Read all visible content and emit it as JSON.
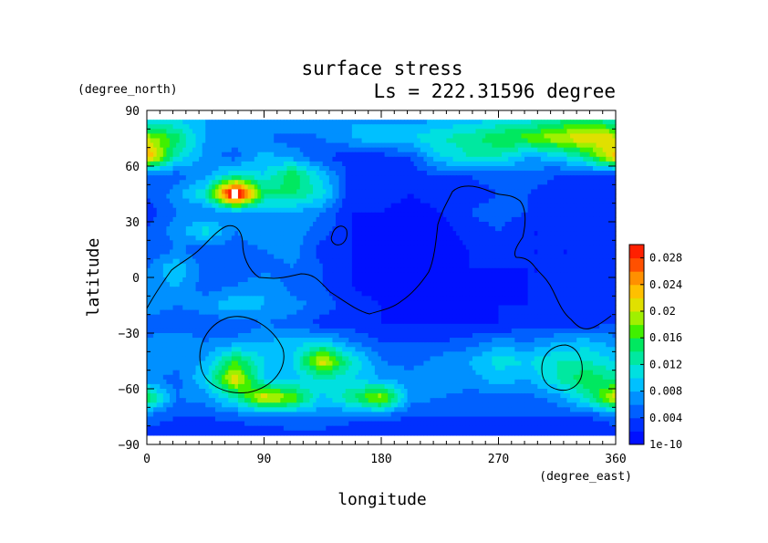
{
  "chart_data": {
    "type": "heatmap",
    "title": "surface stress",
    "subtitle": "Ls = 222.31596 degree",
    "xlabel": "longitude",
    "ylabel": "latitude",
    "x_units": "(degree_east)",
    "y_units": "(degree_north)",
    "xlim": [
      0,
      360
    ],
    "ylim": [
      -90,
      90
    ],
    "x_ticks": [
      "0",
      "90",
      "180",
      "270",
      "360"
    ],
    "y_ticks": [
      "90",
      "60",
      "30",
      "0",
      "−30",
      "−60",
      "−90"
    ],
    "colorbar": {
      "min": 0,
      "max": 0.03,
      "tick_labels": [
        "1e-10",
        "0.004",
        "0.008",
        "0.012",
        "0.016",
        "0.02",
        "0.024",
        "0.028"
      ],
      "tick_values": [
        0,
        0.004,
        0.008,
        0.012,
        0.016,
        0.02,
        0.024,
        0.028
      ],
      "colors": [
        "#0010ff",
        "#0030ff",
        "#0060ff",
        "#0090ff",
        "#00c0ff",
        "#00e0e0",
        "#00e8a0",
        "#00e860",
        "#40f000",
        "#a0f000",
        "#e0e000",
        "#ffc000",
        "#ff9000",
        "#ff5000",
        "#ff2000"
      ]
    },
    "lon": [
      0,
      22.5,
      45,
      67.5,
      90,
      112.5,
      135,
      157.5,
      180,
      202.5,
      225,
      247.5,
      270,
      292.5,
      315,
      337.5,
      360
    ],
    "lat": [
      85,
      75,
      65,
      55,
      45,
      35,
      25,
      15,
      5,
      -5,
      -15,
      -25,
      -35,
      -45,
      -55,
      -65,
      -75,
      -85
    ],
    "z": [
      [
        0.009,
        0.01,
        0.008,
        0.008,
        0.008,
        0.008,
        0.007,
        0.008,
        0.007,
        0.007,
        0.008,
        0.009,
        0.01,
        0.011,
        0.013,
        0.014,
        0.012
      ],
      [
        0.02,
        0.015,
        0.008,
        0.007,
        0.006,
        0.005,
        0.006,
        0.008,
        0.01,
        0.01,
        0.012,
        0.013,
        0.016,
        0.017,
        0.02,
        0.022,
        0.021
      ],
      [
        0.025,
        0.012,
        0.007,
        0.005,
        0.009,
        0.007,
        0.004,
        0.003,
        0.003,
        0.004,
        0.01,
        0.012,
        0.012,
        0.008,
        0.009,
        0.014,
        0.023
      ],
      [
        0.004,
        0.005,
        0.007,
        0.012,
        0.01,
        0.016,
        0.009,
        0.003,
        0.002,
        0.003,
        0.004,
        0.004,
        0.005,
        0.005,
        0.004,
        0.003,
        0.003
      ],
      [
        0.004,
        0.007,
        0.012,
        0.035,
        0.015,
        0.014,
        0.011,
        0.002,
        0.003,
        0.002,
        0.003,
        0.003,
        0.004,
        0.004,
        0.003,
        0.003,
        0.003
      ],
      [
        0.003,
        0.006,
        0.006,
        0.007,
        0.007,
        0.008,
        0.006,
        0.002,
        0.002,
        0.001,
        0.002,
        0.004,
        0.005,
        0.004,
        0.003,
        0.003,
        0.003
      ],
      [
        0.004,
        0.007,
        0.011,
        0.006,
        0.008,
        0.007,
        0.005,
        0.002,
        0.001,
        0.001,
        0.001,
        0.003,
        0.004,
        0.002,
        0.002,
        0.003,
        0.003
      ],
      [
        0.004,
        0.006,
        0.005,
        0.005,
        0.006,
        0.007,
        0.003,
        0.002,
        0.001,
        0.001,
        0.001,
        0.002,
        0.003,
        0.002,
        0.002,
        0.002,
        0.003
      ],
      [
        0.006,
        0.01,
        0.005,
        0.004,
        0.005,
        0.006,
        0.004,
        0.002,
        0.001,
        0.001,
        0.001,
        0.002,
        0.002,
        0.002,
        0.002,
        0.002,
        0.003
      ],
      [
        0.007,
        0.008,
        0.005,
        0.006,
        0.008,
        0.005,
        0.004,
        0.002,
        0.001,
        0.001,
        0.001,
        0.001,
        0.001,
        0.002,
        0.002,
        0.003,
        0.003
      ],
      [
        0.008,
        0.006,
        0.007,
        0.01,
        0.008,
        0.007,
        0.005,
        0.003,
        0.002,
        0.001,
        0.001,
        0.001,
        0.002,
        0.002,
        0.003,
        0.003,
        0.003
      ],
      [
        0.004,
        0.004,
        0.005,
        0.004,
        0.006,
        0.005,
        0.003,
        0.003,
        0.002,
        0.002,
        0.002,
        0.002,
        0.002,
        0.003,
        0.003,
        0.003,
        0.004
      ],
      [
        0.007,
        0.008,
        0.006,
        0.007,
        0.008,
        0.009,
        0.01,
        0.006,
        0.004,
        0.004,
        0.004,
        0.005,
        0.007,
        0.006,
        0.008,
        0.009,
        0.007
      ],
      [
        0.008,
        0.007,
        0.008,
        0.016,
        0.01,
        0.01,
        0.022,
        0.012,
        0.006,
        0.005,
        0.007,
        0.008,
        0.011,
        0.01,
        0.012,
        0.012,
        0.01
      ],
      [
        0.007,
        0.005,
        0.01,
        0.022,
        0.01,
        0.009,
        0.012,
        0.01,
        0.008,
        0.007,
        0.008,
        0.007,
        0.009,
        0.008,
        0.012,
        0.016,
        0.013
      ],
      [
        0.016,
        0.006,
        0.007,
        0.012,
        0.022,
        0.018,
        0.009,
        0.014,
        0.02,
        0.007,
        0.006,
        0.005,
        0.005,
        0.005,
        0.007,
        0.012,
        0.022
      ],
      [
        0.005,
        0.004,
        0.004,
        0.005,
        0.005,
        0.006,
        0.006,
        0.005,
        0.005,
        0.004,
        0.004,
        0.004,
        0.004,
        0.004,
        0.004,
        0.004,
        0.005
      ],
      [
        0.003,
        0.003,
        0.002,
        0.002,
        0.003,
        0.003,
        0.003,
        0.002,
        0.002,
        0.002,
        0.002,
        0.002,
        0.002,
        0.002,
        0.002,
        0.002,
        0.003
      ]
    ]
  }
}
